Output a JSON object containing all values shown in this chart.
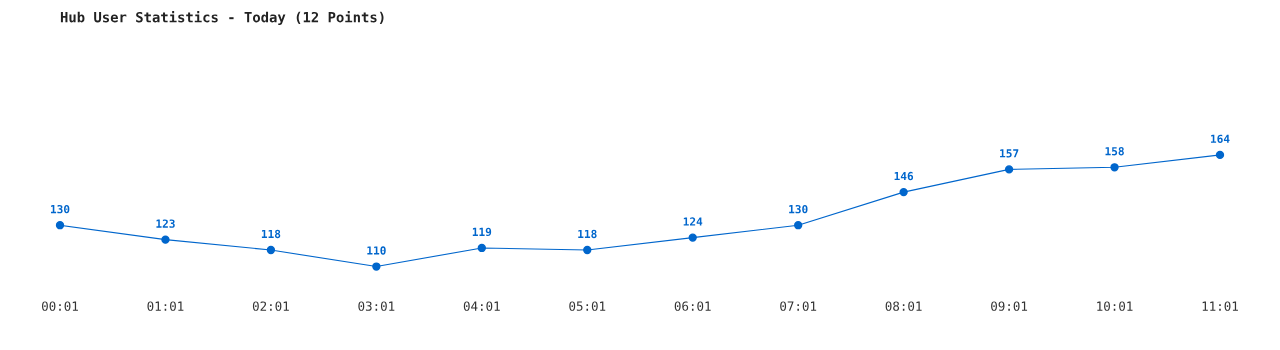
{
  "chart_data": {
    "type": "line",
    "title": "Hub User Statistics - Today (12 Points)",
    "categories": [
      "00:01",
      "01:01",
      "02:01",
      "03:01",
      "04:01",
      "05:01",
      "06:01",
      "07:01",
      "08:01",
      "09:01",
      "10:01",
      "11:01"
    ],
    "series": [
      {
        "color": "#0066cc",
        "values": [
          130,
          123,
          118,
          110,
          119,
          118,
          124,
          130,
          146,
          157,
          158,
          164
        ]
      }
    ],
    "data_labels": true,
    "marker": "circle",
    "line_style": "solid",
    "grid": false,
    "legend": false
  }
}
